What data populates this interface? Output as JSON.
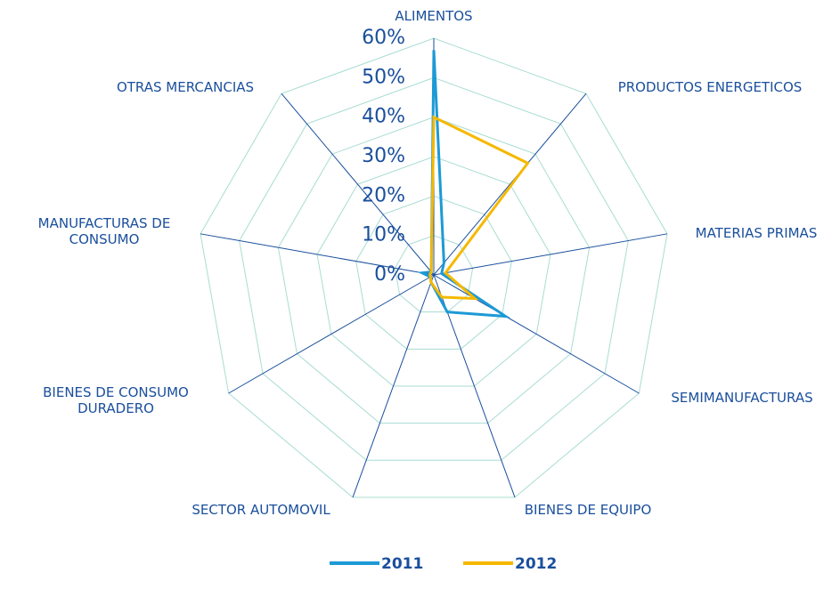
{
  "chart_data": {
    "type": "radar",
    "categories": [
      "ALIMENTOS",
      "PRODUCTOS ENERGETICOS",
      "MATERIAS PRIMAS",
      "SEMIMANUFACTURAS",
      "BIENES DE EQUIPO",
      "SECTOR AUTOMOVIL",
      "BIENES DE CONSUMO DURADERO",
      "MANUFACTURAS DE CONSUMO",
      "OTRAS MERCANCIAS"
    ],
    "series": [
      {
        "name": "2011",
        "color": "#1c9ad6",
        "values": [
          57,
          4,
          2,
          21,
          10,
          2,
          1,
          3,
          1
        ]
      },
      {
        "name": "2012",
        "color": "#f5b800",
        "values": [
          40,
          37,
          3,
          12,
          6,
          2,
          1,
          1,
          1
        ]
      }
    ],
    "ylim": [
      0,
      60
    ],
    "yticks": [
      {
        "value": 0,
        "label": "0%"
      },
      {
        "value": 10,
        "label": "10%"
      },
      {
        "value": 20,
        "label": "20%"
      },
      {
        "value": 30,
        "label": "30%"
      },
      {
        "value": 40,
        "label": "40%"
      },
      {
        "value": 50,
        "label": "50%"
      },
      {
        "value": 60,
        "label": "60%"
      }
    ],
    "grid": true,
    "legend": "bottom"
  }
}
